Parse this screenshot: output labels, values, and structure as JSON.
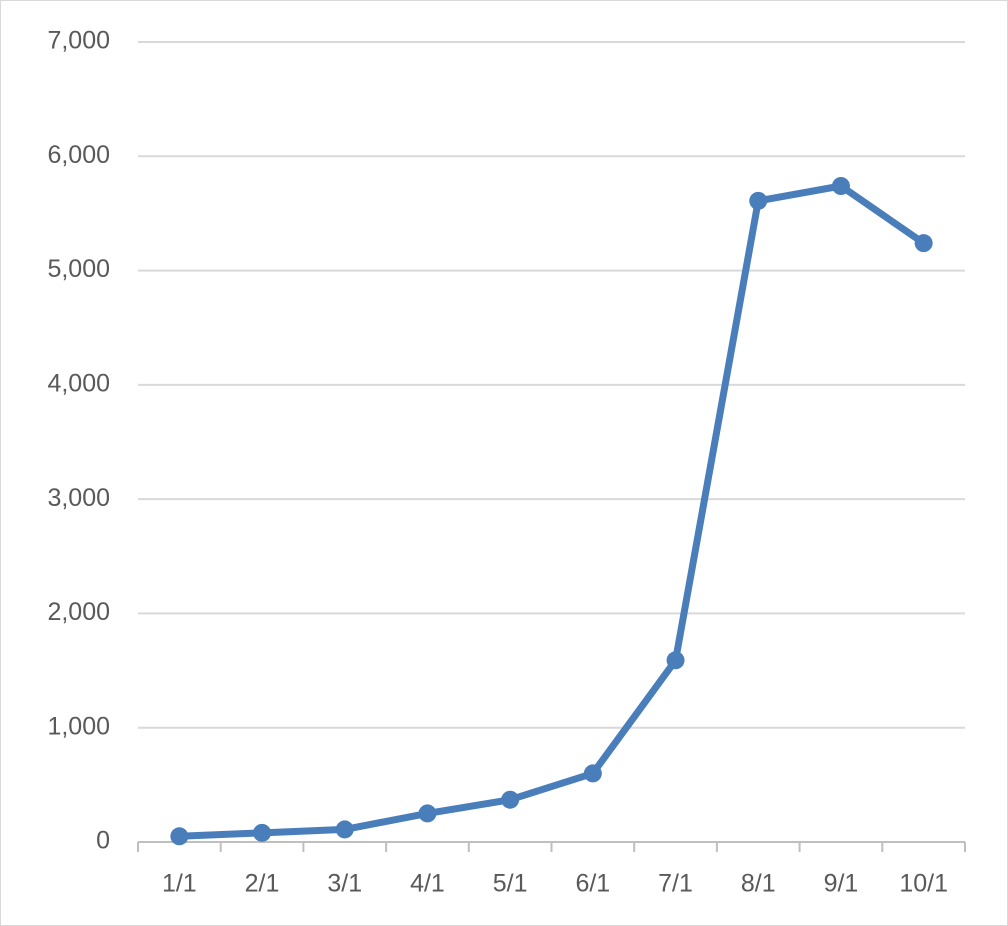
{
  "chart_data": {
    "type": "line",
    "categories": [
      "1/1",
      "2/1",
      "3/1",
      "4/1",
      "5/1",
      "6/1",
      "7/1",
      "8/1",
      "9/1",
      "10/1"
    ],
    "values": [
      50,
      80,
      110,
      250,
      370,
      600,
      1590,
      5610,
      5740,
      5240
    ],
    "color": "#4a7ebb",
    "ylim": [
      0,
      7000
    ],
    "yticks": [
      0,
      {
        "value": 1000,
        "label": "1,000"
      },
      {
        "value": 2000,
        "label": "2,000"
      },
      {
        "value": 3000,
        "label": "3,000"
      },
      {
        "value": 4000,
        "label": "4,000"
      },
      {
        "value": 5000,
        "label": "5,000"
      },
      {
        "value": 6000,
        "label": "6,000"
      },
      {
        "value": 7000,
        "label": "7,000"
      }
    ],
    "grid": true
  }
}
